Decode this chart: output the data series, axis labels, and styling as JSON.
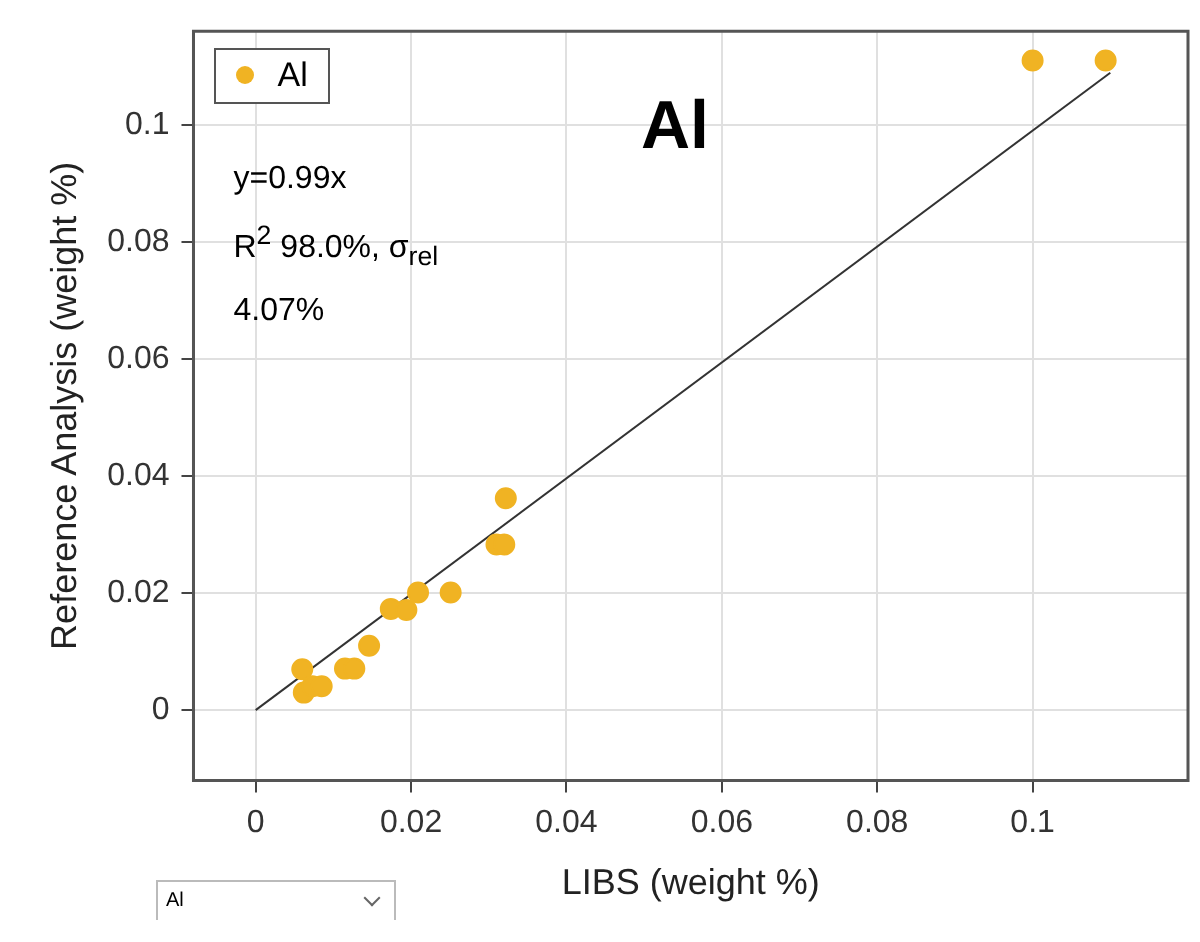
{
  "chart_data": {
    "type": "scatter",
    "title": "Al",
    "xlabel": "LIBS (weight %)",
    "ylabel": "Reference Analysis (weight %)",
    "annotations": [
      "y=0.99x",
      "R$^{2}$ 98.0%, σ$_{rel}$",
      "4.07%",
      "Al"
    ],
    "series": [
      {
        "name": "Al",
        "color": "#f0b323",
        "x": [
          0.006,
          0.0062,
          0.0073,
          0.0085,
          0.0115,
          0.0127,
          0.0146,
          0.0174,
          0.0194,
          0.0209,
          0.0251,
          0.031,
          0.032,
          0.0322,
          0.1,
          0.1094
        ],
        "values": [
          0.007,
          0.003,
          0.0041,
          0.0041,
          0.0071,
          0.0071,
          0.011,
          0.0173,
          0.0171,
          0.0201,
          0.0201,
          0.0283,
          0.0283,
          0.0362,
          0.111,
          0.111
        ]
      },
      {
        "type": "line",
        "color": "#333333",
        "marker": "none",
        "x": [
          0,
          0.11
        ],
        "values": [
          0,
          0.1089
        ]
      }
    ],
    "xlim": [
      -0.008,
      0.12
    ],
    "ylim": [
      -0.012,
      0.116
    ],
    "xticks": [
      0,
      0.02,
      0.04,
      0.06,
      0.08,
      0.1
    ],
    "yticks": [
      0,
      0.02,
      0.04,
      0.06,
      0.08,
      0.1
    ],
    "grid": true,
    "legend": "top left",
    "marker": "circle",
    "line_style": "solid"
  }
}
